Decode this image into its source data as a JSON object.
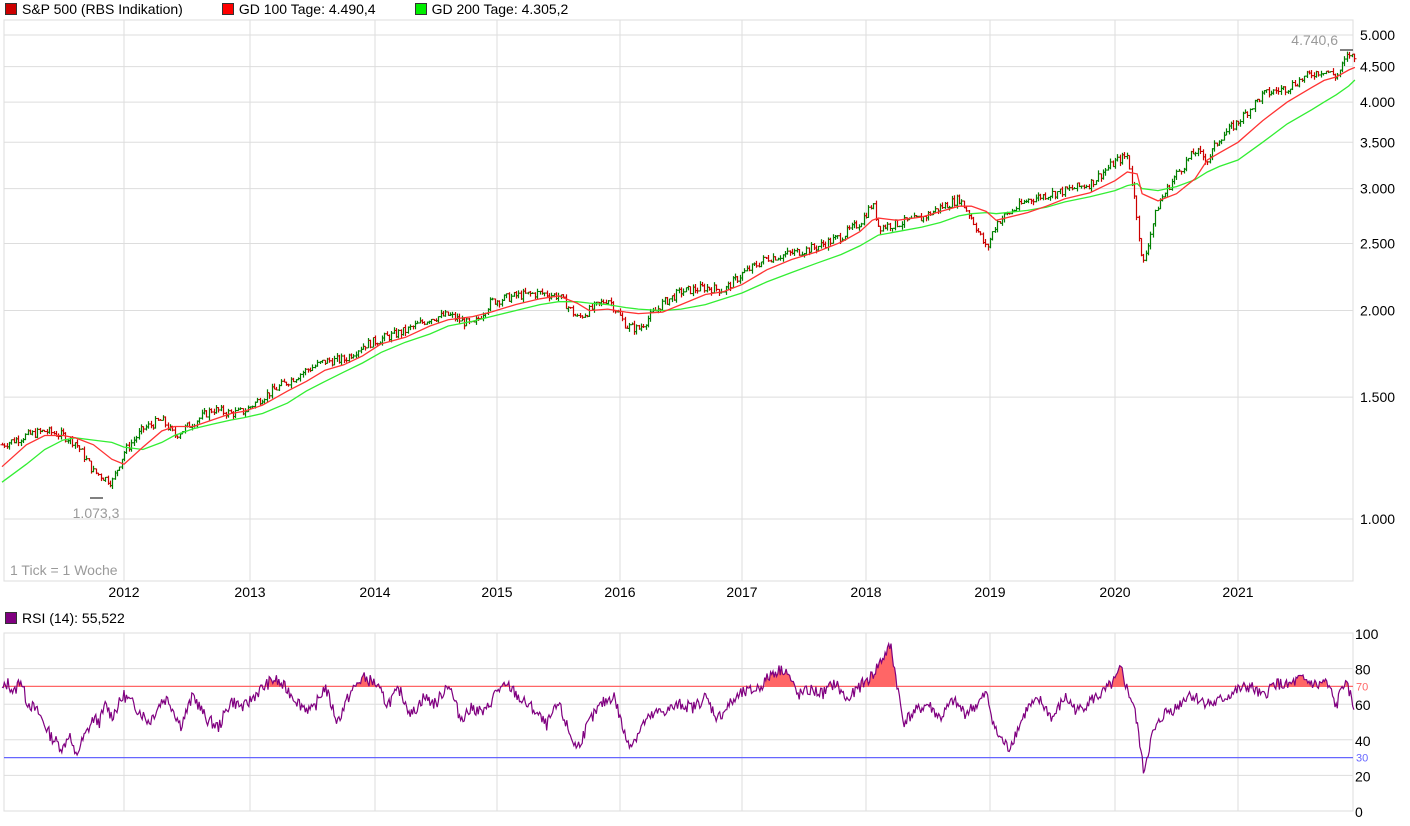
{
  "legend": {
    "main": {
      "label": "S&P 500 (RBS Indikation)",
      "color": "#cc0000"
    },
    "ma100": {
      "label": "GD 100 Tage: 4.490,4",
      "color": "#ff0000"
    },
    "ma200": {
      "label": "GD 200 Tage: 4.305,2",
      "color": "#00ee00"
    }
  },
  "rsi_legend": {
    "label": "RSI (14): 55,522",
    "color": "#800080"
  },
  "annotations": {
    "high": "4.740,6",
    "low": "1.073,3",
    "tick_info": "1 Tick = 1 Woche"
  },
  "colors": {
    "up": "#008000",
    "down": "#cc0000",
    "ma100": "#ff3333",
    "ma200": "#33ee33",
    "rsi": "#800080",
    "overbought": "#ff6666",
    "oversold": "#6666ff",
    "grid": "#dddddd"
  },
  "chart_data": [
    {
      "type": "line",
      "title": "S&P 500 (RBS Indikation)",
      "subtype": "ohlc-weekly",
      "xlabel": "",
      "ylabel": "",
      "yscale": "log",
      "ylim": [
        900,
        5100
      ],
      "x_ticks": [
        "2012",
        "2013",
        "2014",
        "2015",
        "2016",
        "2017",
        "2018",
        "2019",
        "2020",
        "2021"
      ],
      "y_ticks": [
        "1.000",
        "1.500",
        "2.000",
        "2.500",
        "3.000",
        "3.500",
        "4.000",
        "4.500",
        "5.000"
      ],
      "grid": true,
      "legend_position": "top",
      "x": [
        2011.0,
        2011.2,
        2011.35,
        2011.5,
        2011.6,
        2011.75,
        2011.9,
        2012.0,
        2012.15,
        2012.3,
        2012.4,
        2012.55,
        2012.7,
        2012.85,
        2012.95,
        2013.1,
        2013.3,
        2013.45,
        2013.6,
        2013.75,
        2013.9,
        2014.05,
        2014.25,
        2014.45,
        2014.6,
        2014.8,
        2014.95,
        2015.15,
        2015.35,
        2015.5,
        2015.65,
        2015.75,
        2015.9,
        2016.05,
        2016.15,
        2016.35,
        2016.5,
        2016.7,
        2016.85,
        2017.0,
        2017.2,
        2017.4,
        2017.6,
        2017.8,
        2017.95,
        2018.05,
        2018.1,
        2018.25,
        2018.45,
        2018.6,
        2018.75,
        2018.85,
        2018.97,
        2019.05,
        2019.3,
        2019.45,
        2019.6,
        2019.8,
        2020.0,
        2020.1,
        2020.18,
        2020.22,
        2020.35,
        2020.5,
        2020.65,
        2020.75,
        2020.85,
        2021.0,
        2021.2,
        2021.4,
        2021.6,
        2021.7,
        2021.8,
        2021.9,
        2021.95
      ],
      "series": [
        {
          "name": "S&P 500",
          "values": [
            1280,
            1320,
            1340,
            1320,
            1290,
            1170,
            1130,
            1250,
            1350,
            1390,
            1320,
            1380,
            1440,
            1420,
            1430,
            1500,
            1580,
            1640,
            1690,
            1700,
            1780,
            1820,
            1870,
            1950,
            1970,
            1900,
            2060,
            2100,
            2120,
            2100,
            1950,
            2000,
            2080,
            1900,
            1880,
            2050,
            2130,
            2160,
            2140,
            2260,
            2380,
            2420,
            2470,
            2560,
            2680,
            2850,
            2640,
            2670,
            2720,
            2820,
            2900,
            2720,
            2450,
            2680,
            2890,
            2940,
            2980,
            3050,
            3280,
            3350,
            2700,
            2300,
            2850,
            3150,
            3400,
            3300,
            3550,
            3750,
            4100,
            4200,
            4400,
            4450,
            4350,
            4700,
            4600
          ]
        },
        {
          "name": "GD 100 Tage",
          "values": [
            1190,
            1280,
            1320,
            1320,
            1310,
            1280,
            1220,
            1200,
            1270,
            1340,
            1360,
            1360,
            1390,
            1420,
            1430,
            1460,
            1530,
            1580,
            1640,
            1670,
            1720,
            1790,
            1830,
            1900,
            1940,
            1960,
            1990,
            2040,
            2080,
            2100,
            2050,
            2000,
            2010,
            1990,
            1980,
            1990,
            2040,
            2110,
            2130,
            2180,
            2290,
            2370,
            2430,
            2510,
            2600,
            2700,
            2720,
            2700,
            2730,
            2780,
            2830,
            2830,
            2780,
            2700,
            2770,
            2830,
            2900,
            2960,
            3080,
            3170,
            3150,
            2950,
            2880,
            2950,
            3100,
            3300,
            3380,
            3500,
            3760,
            4000,
            4200,
            4300,
            4350,
            4450,
            4490
          ]
        },
        {
          "name": "GD 200 Tage",
          "values": [
            1130,
            1200,
            1260,
            1300,
            1310,
            1300,
            1290,
            1270,
            1260,
            1290,
            1320,
            1350,
            1370,
            1390,
            1400,
            1420,
            1470,
            1530,
            1580,
            1630,
            1680,
            1740,
            1800,
            1850,
            1900,
            1930,
            1960,
            2000,
            2040,
            2060,
            2060,
            2050,
            2040,
            2020,
            2010,
            2000,
            2010,
            2040,
            2080,
            2120,
            2200,
            2270,
            2340,
            2410,
            2480,
            2540,
            2570,
            2600,
            2640,
            2680,
            2740,
            2760,
            2770,
            2760,
            2790,
            2820,
            2870,
            2920,
            2980,
            3030,
            3050,
            3000,
            2980,
            3020,
            3090,
            3170,
            3230,
            3300,
            3500,
            3720,
            3900,
            4000,
            4100,
            4220,
            4305
          ]
        }
      ],
      "annotations": [
        {
          "text": "4.740,6",
          "type": "period-high"
        },
        {
          "text": "1.073,3",
          "type": "period-low"
        },
        {
          "text": "1 Tick = 1 Woche"
        }
      ]
    },
    {
      "type": "line",
      "title": "RSI (14): 55,522",
      "xlabel": "",
      "ylabel": "",
      "ylim": [
        0,
        100
      ],
      "y_ticks": [
        "0",
        "20",
        "40",
        "60",
        "80",
        "100"
      ],
      "reference_lines": [
        {
          "value": 70,
          "label": "70",
          "color": "#ff6666"
        },
        {
          "value": 30,
          "label": "30",
          "color": "#6666ff"
        }
      ],
      "x": [
        2011.0,
        2011.05,
        2011.1,
        2011.15,
        2011.2,
        2011.3,
        2011.4,
        2011.5,
        2011.55,
        2011.6,
        2011.65,
        2011.7,
        2011.75,
        2011.8,
        2011.85,
        2011.9,
        2012.0,
        2012.1,
        2012.2,
        2012.3,
        2012.35,
        2012.45,
        2012.55,
        2012.65,
        2012.75,
        2012.85,
        2012.95,
        2013.05,
        2013.15,
        2013.2,
        2013.3,
        2013.4,
        2013.5,
        2013.6,
        2013.7,
        2013.8,
        2013.9,
        2014.0,
        2014.1,
        2014.2,
        2014.3,
        2014.4,
        2014.5,
        2014.6,
        2014.7,
        2014.8,
        2014.9,
        2015.0,
        2015.1,
        2015.2,
        2015.3,
        2015.4,
        2015.5,
        2015.6,
        2015.65,
        2015.75,
        2015.85,
        2015.95,
        2016.05,
        2016.1,
        2016.2,
        2016.3,
        2016.4,
        2016.5,
        2016.6,
        2016.7,
        2016.8,
        2016.9,
        2017.0,
        2017.1,
        2017.15,
        2017.25,
        2017.35,
        2017.45,
        2017.55,
        2017.65,
        2017.75,
        2017.85,
        2017.95,
        2018.05,
        2018.1,
        2018.2,
        2018.3,
        2018.4,
        2018.5,
        2018.6,
        2018.7,
        2018.8,
        2018.9,
        2018.97,
        2019.05,
        2019.15,
        2019.3,
        2019.4,
        2019.5,
        2019.6,
        2019.7,
        2019.8,
        2019.9,
        2020.0,
        2020.05,
        2020.1,
        2020.15,
        2020.2,
        2020.23,
        2020.3,
        2020.4,
        2020.5,
        2020.6,
        2020.7,
        2020.8,
        2020.9,
        2021.0,
        2021.1,
        2021.2,
        2021.3,
        2021.4,
        2021.5,
        2021.6,
        2021.65,
        2021.7,
        2021.75,
        2021.8,
        2021.85,
        2021.9,
        2021.95
      ],
      "series": [
        {
          "name": "RSI (14)",
          "values": [
            68,
            72,
            66,
            75,
            62,
            55,
            42,
            35,
            44,
            30,
            38,
            45,
            52,
            50,
            60,
            53,
            65,
            58,
            50,
            62,
            63,
            48,
            65,
            52,
            47,
            62,
            58,
            66,
            72,
            74,
            68,
            60,
            56,
            70,
            50,
            66,
            75,
            72,
            60,
            68,
            54,
            64,
            60,
            72,
            52,
            58,
            55,
            68,
            70,
            62,
            57,
            48,
            60,
            42,
            35,
            50,
            60,
            65,
            40,
            38,
            50,
            55,
            57,
            60,
            58,
            64,
            52,
            60,
            66,
            68,
            70,
            78,
            80,
            65,
            68,
            66,
            72,
            62,
            70,
            76,
            82,
            93,
            50,
            56,
            60,
            52,
            62,
            55,
            60,
            66,
            44,
            35,
            58,
            62,
            52,
            64,
            56,
            62,
            66,
            73,
            80,
            68,
            60,
            40,
            22,
            42,
            55,
            58,
            66,
            62,
            60,
            64,
            68,
            70,
            64,
            72,
            70,
            74,
            72,
            70,
            73,
            68,
            58,
            72,
            68,
            56
          ]
        }
      ]
    }
  ]
}
